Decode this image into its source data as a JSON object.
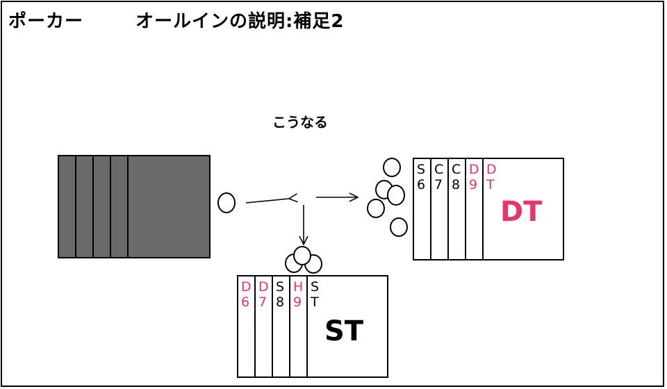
{
  "header": {
    "game": "ポーカー",
    "title": "オールインの説明:補足2"
  },
  "caption": "こうなる",
  "colors": {
    "red": "#e8336b",
    "black": "#000000",
    "deck_fill": "#6a6a6a"
  },
  "hands": {
    "dealer": {
      "label": "DT",
      "cards": [
        {
          "suit": "S",
          "rank": "6",
          "color": "black"
        },
        {
          "suit": "C",
          "rank": "7",
          "color": "black"
        },
        {
          "suit": "C",
          "rank": "8",
          "color": "black"
        },
        {
          "suit": "D",
          "rank": "9",
          "color": "red"
        },
        {
          "suit": "D",
          "rank": "T",
          "color": "red"
        }
      ]
    },
    "player": {
      "label": "ST",
      "cards": [
        {
          "suit": "D",
          "rank": "6",
          "color": "red"
        },
        {
          "suit": "D",
          "rank": "7",
          "color": "red"
        },
        {
          "suit": "S",
          "rank": "8",
          "color": "black"
        },
        {
          "suit": "H",
          "rank": "9",
          "color": "red"
        },
        {
          "suit": "S",
          "rank": "T",
          "color": "black"
        }
      ]
    }
  }
}
